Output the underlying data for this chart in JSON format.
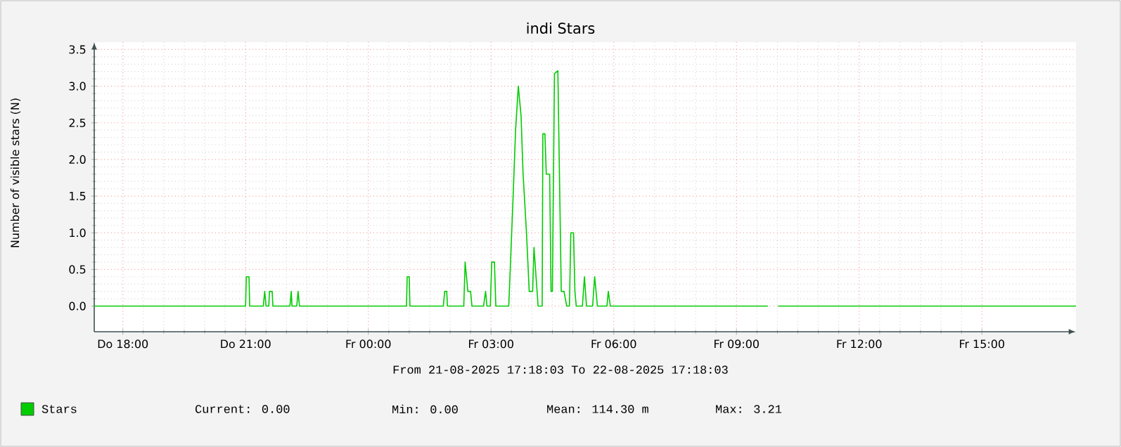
{
  "chart_data": {
    "type": "line",
    "title": "indi Stars",
    "ylabel": "Number of visible stars (N)",
    "xlim": [
      "2025-08-21T17:18",
      "2025-08-22T17:18"
    ],
    "ylim": [
      -0.35,
      3.6
    ],
    "xticks": [
      {
        "value": "2025-08-21T18:00",
        "label": "Do 18:00"
      },
      {
        "value": "2025-08-21T21:00",
        "label": "Do 21:00"
      },
      {
        "value": "2025-08-22T00:00",
        "label": "Fr 00:00"
      },
      {
        "value": "2025-08-22T03:00",
        "label": "Fr 03:00"
      },
      {
        "value": "2025-08-22T06:00",
        "label": "Fr 06:00"
      },
      {
        "value": "2025-08-22T09:00",
        "label": "Fr 09:00"
      },
      {
        "value": "2025-08-22T12:00",
        "label": "Fr 12:00"
      },
      {
        "value": "2025-08-22T15:00",
        "label": "Fr 15:00"
      }
    ],
    "yticks": [
      {
        "value": 0,
        "label": "0.0"
      },
      {
        "value": 0.5,
        "label": "0.5"
      },
      {
        "value": 1,
        "label": "1.0"
      },
      {
        "value": 1.5,
        "label": "1.5"
      },
      {
        "value": 2,
        "label": "2.0"
      },
      {
        "value": 2.5,
        "label": "2.5"
      },
      {
        "value": 3,
        "label": "3.0"
      },
      {
        "value": 3.5,
        "label": "3.5"
      }
    ],
    "grid": true,
    "legend": "bottom left",
    "marker": "none",
    "line_style": "solid",
    "series": [
      {
        "name": "Stars",
        "color": "#00cc00",
        "x": [
          "2025-08-21T17:18",
          "2025-08-21T21:00",
          "2025-08-21T21:01",
          "2025-08-21T21:05",
          "2025-08-21T21:06",
          "2025-08-21T21:26",
          "2025-08-21T21:28",
          "2025-08-21T21:30",
          "2025-08-21T21:34",
          "2025-08-21T21:35",
          "2025-08-21T21:39",
          "2025-08-21T21:40",
          "2025-08-21T22:05",
          "2025-08-21T22:07",
          "2025-08-21T22:08",
          "2025-08-21T22:15",
          "2025-08-21T22:17",
          "2025-08-21T22:19",
          "2025-08-22T00:56",
          "2025-08-22T00:57",
          "2025-08-22T01:00",
          "2025-08-22T01:01",
          "2025-08-22T01:50",
          "2025-08-22T01:52",
          "2025-08-22T01:55",
          "2025-08-22T01:56",
          "2025-08-22T02:20",
          "2025-08-22T02:22",
          "2025-08-22T02:26",
          "2025-08-22T02:30",
          "2025-08-22T02:32",
          "2025-08-22T02:49",
          "2025-08-22T02:52",
          "2025-08-22T02:54",
          "2025-08-22T02:59",
          "2025-08-22T03:01",
          "2025-08-22T03:05",
          "2025-08-22T03:07",
          "2025-08-22T03:26",
          "2025-08-22T03:32",
          "2025-08-22T03:36",
          "2025-08-22T03:40",
          "2025-08-22T03:44",
          "2025-08-22T03:47",
          "2025-08-22T03:52",
          "2025-08-22T03:56",
          "2025-08-22T04:01",
          "2025-08-22T04:03",
          "2025-08-22T04:06",
          "2025-08-22T04:09",
          "2025-08-22T04:15",
          "2025-08-22T04:16",
          "2025-08-22T04:19",
          "2025-08-22T04:21",
          "2025-08-22T04:26",
          "2025-08-22T04:28",
          "2025-08-22T04:30",
          "2025-08-22T04:33",
          "2025-08-22T04:38",
          "2025-08-22T04:43",
          "2025-08-22T04:47",
          "2025-08-22T04:51",
          "2025-08-22T04:55",
          "2025-08-22T04:57",
          "2025-08-22T05:01",
          "2025-08-22T05:03",
          "2025-08-22T05:05",
          "2025-08-22T05:14",
          "2025-08-22T05:17",
          "2025-08-22T05:20",
          "2025-08-22T05:29",
          "2025-08-22T05:32",
          "2025-08-22T05:36",
          "2025-08-22T05:50",
          "2025-08-22T05:52",
          "2025-08-22T05:55",
          "2025-08-22T09:46",
          "2025-08-22T09:54",
          "2025-08-22T10:01",
          "2025-08-22T17:18"
        ],
        "values": [
          0,
          0,
          0.4,
          0.4,
          0,
          0,
          0.2,
          0,
          0,
          0.2,
          0.2,
          0,
          0,
          0.2,
          0,
          0,
          0.2,
          0,
          0,
          0.4,
          0.4,
          0,
          0,
          0.2,
          0.2,
          0,
          0,
          0.6,
          0.2,
          0.2,
          0,
          0,
          0.2,
          0,
          0,
          0.6,
          0.6,
          0,
          0,
          1.4,
          2.4,
          3.0,
          2.6,
          1.8,
          1.0,
          0.2,
          0.2,
          0.8,
          0.4,
          0,
          0,
          2.35,
          2.35,
          1.8,
          1.8,
          0.2,
          0.2,
          3.17,
          3.21,
          0.2,
          0.2,
          0,
          0,
          1.0,
          1.0,
          0.2,
          0,
          0,
          0.4,
          0,
          0,
          0.4,
          0,
          0,
          0.2,
          0,
          0,
          null,
          0,
          0
        ]
      }
    ],
    "annotations": [
      "From 21-08-2025 17:18:03 To 22-08-2025 17:18:03",
      "Current: 0.00",
      "Min: 0.00",
      "Mean: 114.30 m",
      "Max: 3.21"
    ]
  }
}
